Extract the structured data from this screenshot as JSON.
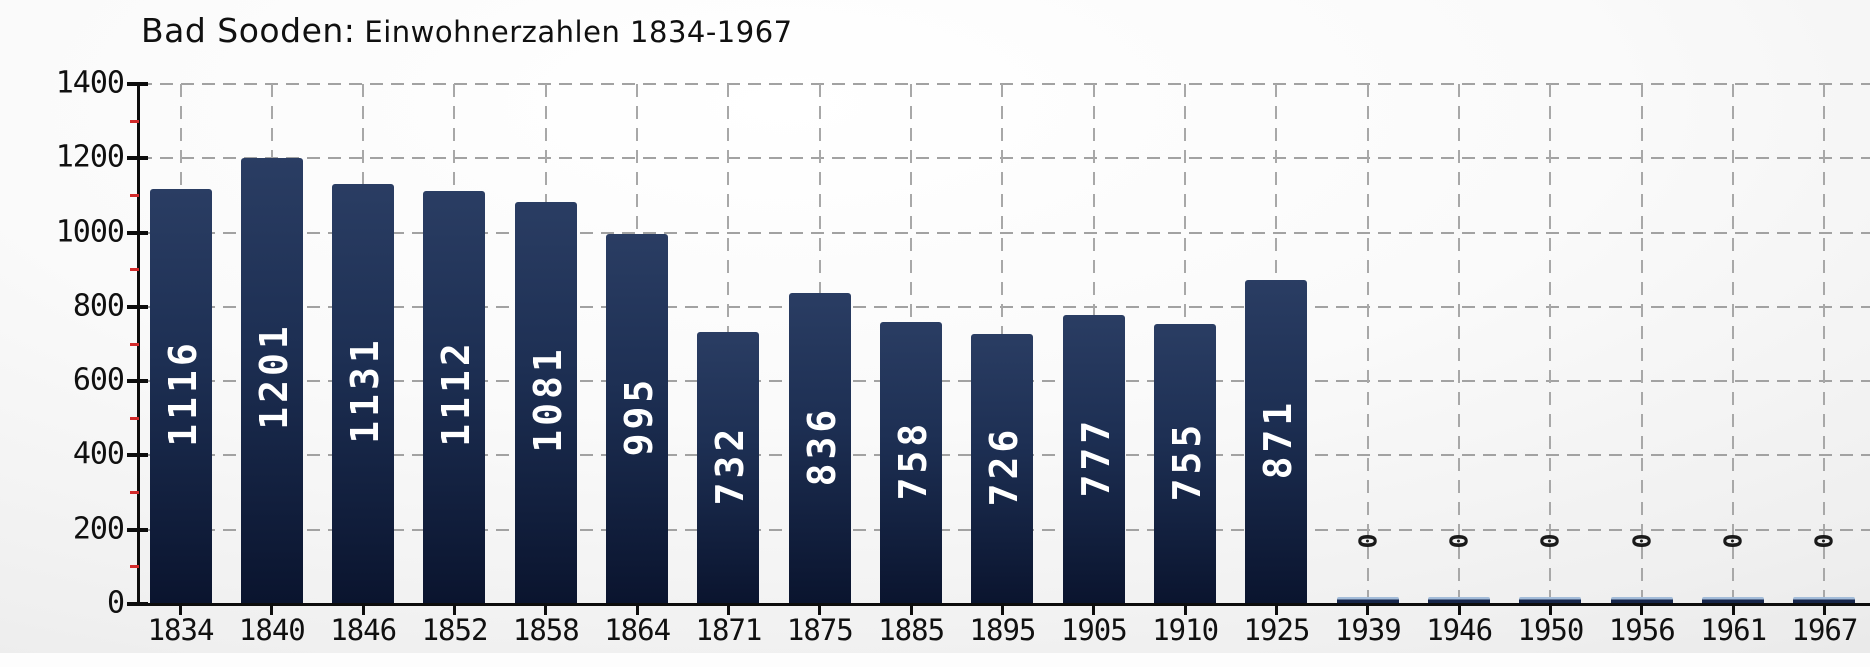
{
  "title": {
    "prefix": "Bad Sooden:",
    "rest": "Einwohnerzahlen 1834-1967"
  },
  "chart_data": {
    "type": "bar",
    "title": "Bad Sooden: Einwohnerzahlen 1834-1967",
    "categories": [
      "1834",
      "1840",
      "1846",
      "1852",
      "1858",
      "1864",
      "1871",
      "1875",
      "1885",
      "1895",
      "1905",
      "1910",
      "1925",
      "1939",
      "1946",
      "1950",
      "1956",
      "1961",
      "1967"
    ],
    "values": [
      1116,
      1201,
      1131,
      1112,
      1081,
      995,
      732,
      836,
      758,
      726,
      777,
      755,
      871,
      0,
      0,
      0,
      0,
      0,
      0
    ],
    "series_name": "Einwohner",
    "xlabel": "",
    "ylabel": "",
    "ylim": [
      0,
      1400
    ],
    "yticks": [
      0,
      200,
      400,
      600,
      800,
      1000,
      1200,
      1400
    ],
    "y_minor_ticks": [
      100,
      300,
      500,
      700,
      900,
      1100,
      1300
    ],
    "grid": "dashed horizontal and vertical gridlines",
    "legend": "none",
    "bar_value_labels": "values printed rotated 90deg in white inside bars; zero values printed as rotated 0 above baseline"
  },
  "colors": {
    "bar_gradient_top": "#2a3d63",
    "bar_gradient_mid": "#1d2f53",
    "bar_gradient_bottom": "#0a142e",
    "bar_zero_cap": "#a3bcd9",
    "bar_zero_body": "#16254a",
    "value_label_text": "#ffffff",
    "zero_label_text": "#1a1a1a",
    "axis_line": "#0d0d0d",
    "minor_tick": "#d32b2b",
    "gridline": "#a2a2a2",
    "axis_label_text": "#101010",
    "title_text": "#101010"
  }
}
